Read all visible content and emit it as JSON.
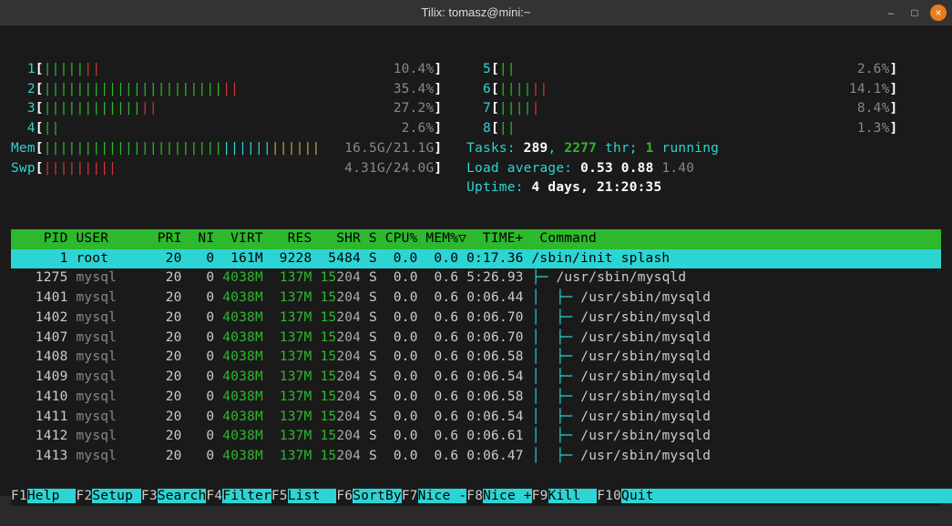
{
  "window": {
    "title": "Tilix: tomasz@mini:~"
  },
  "meters": {
    "cpus": [
      {
        "label": "1",
        "bars": "|||||||",
        "pct": "10.4%"
      },
      {
        "label": "2",
        "bars": "||||||||||||||||||||||||",
        "pct": "35.4%"
      },
      {
        "label": "3",
        "bars": "||||||||||||||",
        "pct": "27.2%"
      },
      {
        "label": "4",
        "bars": "||",
        "pct": "2.6%"
      },
      {
        "label": "5",
        "bars": "||",
        "pct": "2.6%"
      },
      {
        "label": "6",
        "bars": "||||||",
        "pct": "14.1%"
      },
      {
        "label": "7",
        "bars": "|||||",
        "pct": "8.4%"
      },
      {
        "label": "8",
        "bars": "||",
        "pct": "1.3%"
      }
    ],
    "mem": {
      "label": "Mem",
      "used": "16.5G",
      "total": "21.1G"
    },
    "swp": {
      "label": "Swp",
      "used": "4.31G",
      "total": "24.0G"
    },
    "tasks": {
      "label": "Tasks:",
      "procs": "289",
      "threads": "2277",
      "thr_label": "thr;",
      "running": "1",
      "running_label": "running"
    },
    "load": {
      "label": "Load average:",
      "a": "0.53",
      "b": "0.88",
      "c": "1.40"
    },
    "uptime": {
      "label": "Uptime:",
      "value": "4 days, 21:20:35"
    }
  },
  "table": {
    "header": "    PID USER      PRI  NI  VIRT   RES   SHR S CPU% MEM%▽  TIME+  Command",
    "rows": [
      {
        "pid": "1",
        "user": "root",
        "pri": "20",
        "ni": "0",
        "virt": "161M",
        "res": "9228",
        "shr": "5484",
        "s": "S",
        "cpu": "0.0",
        "mem": "0.0",
        "time": "0:17.36",
        "cmd": "/sbin/init splash",
        "tree": "",
        "selected": true
      },
      {
        "pid": "1275",
        "user": "mysql",
        "pri": "20",
        "ni": "0",
        "virt": "4038M",
        "res": "137M",
        "shr": "15204",
        "s": "S",
        "cpu": "0.0",
        "mem": "0.6",
        "time": "5:26.93",
        "cmd": "/usr/sbin/mysqld",
        "tree": "├─ "
      },
      {
        "pid": "1401",
        "user": "mysql",
        "pri": "20",
        "ni": "0",
        "virt": "4038M",
        "res": "137M",
        "shr": "15204",
        "s": "S",
        "cpu": "0.0",
        "mem": "0.6",
        "time": "0:06.44",
        "cmd": "/usr/sbin/mysqld",
        "tree": "│  ├─ "
      },
      {
        "pid": "1402",
        "user": "mysql",
        "pri": "20",
        "ni": "0",
        "virt": "4038M",
        "res": "137M",
        "shr": "15204",
        "s": "S",
        "cpu": "0.0",
        "mem": "0.6",
        "time": "0:06.70",
        "cmd": "/usr/sbin/mysqld",
        "tree": "│  ├─ "
      },
      {
        "pid": "1407",
        "user": "mysql",
        "pri": "20",
        "ni": "0",
        "virt": "4038M",
        "res": "137M",
        "shr": "15204",
        "s": "S",
        "cpu": "0.0",
        "mem": "0.6",
        "time": "0:06.70",
        "cmd": "/usr/sbin/mysqld",
        "tree": "│  ├─ "
      },
      {
        "pid": "1408",
        "user": "mysql",
        "pri": "20",
        "ni": "0",
        "virt": "4038M",
        "res": "137M",
        "shr": "15204",
        "s": "S",
        "cpu": "0.0",
        "mem": "0.6",
        "time": "0:06.58",
        "cmd": "/usr/sbin/mysqld",
        "tree": "│  ├─ "
      },
      {
        "pid": "1409",
        "user": "mysql",
        "pri": "20",
        "ni": "0",
        "virt": "4038M",
        "res": "137M",
        "shr": "15204",
        "s": "S",
        "cpu": "0.0",
        "mem": "0.6",
        "time": "0:06.54",
        "cmd": "/usr/sbin/mysqld",
        "tree": "│  ├─ "
      },
      {
        "pid": "1410",
        "user": "mysql",
        "pri": "20",
        "ni": "0",
        "virt": "4038M",
        "res": "137M",
        "shr": "15204",
        "s": "S",
        "cpu": "0.0",
        "mem": "0.6",
        "time": "0:06.58",
        "cmd": "/usr/sbin/mysqld",
        "tree": "│  ├─ "
      },
      {
        "pid": "1411",
        "user": "mysql",
        "pri": "20",
        "ni": "0",
        "virt": "4038M",
        "res": "137M",
        "shr": "15204",
        "s": "S",
        "cpu": "0.0",
        "mem": "0.6",
        "time": "0:06.54",
        "cmd": "/usr/sbin/mysqld",
        "tree": "│  ├─ "
      },
      {
        "pid": "1412",
        "user": "mysql",
        "pri": "20",
        "ni": "0",
        "virt": "4038M",
        "res": "137M",
        "shr": "15204",
        "s": "S",
        "cpu": "0.0",
        "mem": "0.6",
        "time": "0:06.61",
        "cmd": "/usr/sbin/mysqld",
        "tree": "│  ├─ "
      },
      {
        "pid": "1413",
        "user": "mysql",
        "pri": "20",
        "ni": "0",
        "virt": "4038M",
        "res": "137M",
        "shr": "15204",
        "s": "S",
        "cpu": "0.0",
        "mem": "0.6",
        "time": "0:06.47",
        "cmd": "/usr/sbin/mysqld",
        "tree": "│  ├─ "
      }
    ]
  },
  "footer": [
    {
      "key": "F1",
      "label": "Help  "
    },
    {
      "key": "F2",
      "label": "Setup "
    },
    {
      "key": "F3",
      "label": "Search"
    },
    {
      "key": "F4",
      "label": "Filter"
    },
    {
      "key": "F5",
      "label": "List  "
    },
    {
      "key": "F6",
      "label": "SortBy"
    },
    {
      "key": "F7",
      "label": "Nice -"
    },
    {
      "key": "F8",
      "label": "Nice +"
    },
    {
      "key": "F9",
      "label": "Kill  "
    },
    {
      "key": "F10",
      "label": "Quit"
    }
  ]
}
